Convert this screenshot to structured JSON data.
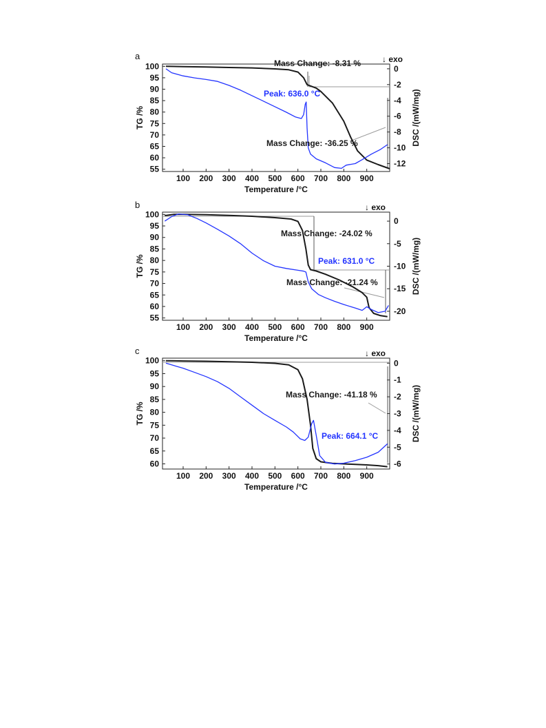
{
  "chart_data": [
    {
      "type": "line",
      "panel_label": "a",
      "xlabel": "Temperature /°C",
      "ylabel": "TG /%",
      "y2label": "DSC /(mW/mg)",
      "xlim": [
        10,
        1000
      ],
      "ylim": [
        54,
        101
      ],
      "y2lim": [
        -13,
        0.6
      ],
      "xticks": [
        100,
        200,
        300,
        400,
        500,
        600,
        700,
        800,
        900
      ],
      "yticks": [
        55,
        60,
        65,
        70,
        75,
        80,
        85,
        90,
        95,
        100
      ],
      "y2ticks": [
        0,
        -2,
        -4,
        -6,
        -8,
        -10,
        -12
      ],
      "exo_label": "↓ exo",
      "colors": {
        "TG": "#1a1a1a",
        "DSC": "#2233ff",
        "guide": "#999999"
      },
      "series": [
        {
          "name": "TG",
          "axis": "left",
          "color": "#1a1a1a",
          "points": [
            [
              25,
              100
            ],
            [
              100,
              99.9
            ],
            [
              200,
              99.7
            ],
            [
              300,
              99.5
            ],
            [
              400,
              99.3
            ],
            [
              500,
              98.9
            ],
            [
              560,
              98.5
            ],
            [
              600,
              97.5
            ],
            [
              625,
              95.0
            ],
            [
              640,
              92.0
            ],
            [
              650,
              91.6
            ],
            [
              680,
              90.5
            ],
            [
              700,
              89.0
            ],
            [
              750,
              84.0
            ],
            [
              800,
              76.0
            ],
            [
              830,
              69.0
            ],
            [
              860,
              63.0
            ],
            [
              900,
              59.0
            ],
            [
              950,
              57.0
            ],
            [
              1000,
              55.2
            ]
          ]
        },
        {
          "name": "DSC",
          "axis": "right",
          "color": "#2233ff",
          "points": [
            [
              25,
              0
            ],
            [
              50,
              -0.5
            ],
            [
              100,
              -0.9
            ],
            [
              150,
              -1.15
            ],
            [
              200,
              -1.35
            ],
            [
              250,
              -1.6
            ],
            [
              300,
              -2.1
            ],
            [
              350,
              -2.7
            ],
            [
              400,
              -3.4
            ],
            [
              450,
              -4.1
            ],
            [
              500,
              -4.8
            ],
            [
              550,
              -5.5
            ],
            [
              590,
              -6.1
            ],
            [
              615,
              -6.3
            ],
            [
              625,
              -5.8
            ],
            [
              632,
              -4.5
            ],
            [
              636,
              -4.2
            ],
            [
              640,
              -7.5
            ],
            [
              645,
              -10.0
            ],
            [
              655,
              -10.8
            ],
            [
              680,
              -11.4
            ],
            [
              720,
              -11.9
            ],
            [
              760,
              -12.5
            ],
            [
              790,
              -12.6
            ],
            [
              810,
              -12.2
            ],
            [
              850,
              -12.0
            ],
            [
              880,
              -11.5
            ],
            [
              920,
              -10.8
            ],
            [
              960,
              -10.2
            ],
            [
              990,
              -9.6
            ]
          ]
        }
      ],
      "annotations": [
        {
          "text": "Mass Change: -8.31 %",
          "color": "#1a1a1a"
        },
        {
          "text": "Peak: 636.0 °C",
          "color": "#2233ff"
        },
        {
          "text": "Mass Change: -36.25 %",
          "color": "#1a1a1a"
        }
      ]
    },
    {
      "type": "line",
      "panel_label": "b",
      "xlabel": "Temperature /°C",
      "ylabel": "TG /%",
      "y2label": "DSC /(mW/mg)",
      "xlim": [
        10,
        1000
      ],
      "ylim": [
        54,
        101
      ],
      "y2lim": [
        -22,
        2
      ],
      "xticks": [
        100,
        200,
        300,
        400,
        500,
        600,
        700,
        800,
        900
      ],
      "yticks": [
        55,
        60,
        65,
        70,
        75,
        80,
        85,
        90,
        95,
        100
      ],
      "y2ticks": [
        0,
        -5,
        -10,
        -15,
        -20
      ],
      "exo_label": "↓ exo",
      "colors": {
        "TG": "#1a1a1a",
        "DSC": "#2233ff",
        "guide": "#999999"
      },
      "series": [
        {
          "name": "TG",
          "axis": "left",
          "color": "#1a1a1a",
          "points": [
            [
              20,
              99.5
            ],
            [
              60,
              100
            ],
            [
              100,
              100
            ],
            [
              200,
              99.9
            ],
            [
              300,
              99.6
            ],
            [
              400,
              99.2
            ],
            [
              500,
              98.6
            ],
            [
              570,
              98.0
            ],
            [
              600,
              97.0
            ],
            [
              620,
              93.0
            ],
            [
              635,
              85.0
            ],
            [
              645,
              78.0
            ],
            [
              655,
              76.0
            ],
            [
              680,
              75.4
            ],
            [
              720,
              74.0
            ],
            [
              780,
              71.5
            ],
            [
              840,
              68.5
            ],
            [
              880,
              66.0
            ],
            [
              900,
              64.0
            ],
            [
              910,
              59.5
            ],
            [
              930,
              57.0
            ],
            [
              960,
              56.0
            ],
            [
              990,
              55.6
            ]
          ]
        },
        {
          "name": "DSC",
          "axis": "right",
          "color": "#2233ff",
          "points": [
            [
              20,
              0
            ],
            [
              50,
              1.0
            ],
            [
              80,
              1.6
            ],
            [
              120,
              1.4
            ],
            [
              160,
              0.6
            ],
            [
              200,
              -0.4
            ],
            [
              250,
              -1.8
            ],
            [
              300,
              -3.3
            ],
            [
              350,
              -5.0
            ],
            [
              400,
              -7.1
            ],
            [
              450,
              -8.8
            ],
            [
              500,
              -10.0
            ],
            [
              550,
              -10.5
            ],
            [
              600,
              -10.9
            ],
            [
              625,
              -11.1
            ],
            [
              635,
              -11.3
            ],
            [
              645,
              -13.5
            ],
            [
              660,
              -15.0
            ],
            [
              690,
              -16.3
            ],
            [
              720,
              -17.0
            ],
            [
              760,
              -17.8
            ],
            [
              800,
              -18.5
            ],
            [
              850,
              -19.3
            ],
            [
              880,
              -19.8
            ],
            [
              900,
              -19.0
            ],
            [
              920,
              -19.6
            ],
            [
              950,
              -20.3
            ],
            [
              980,
              -20.0
            ],
            [
              995,
              -18.7
            ]
          ]
        }
      ],
      "annotations": [
        {
          "text": "Mass Change: -24.02 %",
          "color": "#1a1a1a"
        },
        {
          "text": "Peak: 631.0 °C",
          "color": "#2233ff"
        },
        {
          "text": "Mass Change: -21.24 %",
          "color": "#1a1a1a"
        }
      ]
    },
    {
      "type": "line",
      "panel_label": "c",
      "xlabel": "Temperature /°C",
      "ylabel": "TG /%",
      "y2label": "DSC /(mW/mg)",
      "xlim": [
        10,
        1000
      ],
      "ylim": [
        58,
        101
      ],
      "y2lim": [
        -6.3,
        0.3
      ],
      "xticks": [
        100,
        200,
        300,
        400,
        500,
        600,
        700,
        800,
        900
      ],
      "yticks": [
        60,
        65,
        70,
        75,
        80,
        85,
        90,
        95,
        100
      ],
      "y2ticks": [
        0,
        -1,
        -2,
        -3,
        -4,
        -5,
        -6
      ],
      "exo_label": "↓ exo",
      "colors": {
        "TG": "#1a1a1a",
        "DSC": "#2233ff",
        "guide": "#999999"
      },
      "series": [
        {
          "name": "TG",
          "axis": "left",
          "color": "#1a1a1a",
          "points": [
            [
              25,
              100
            ],
            [
              100,
              99.9
            ],
            [
              200,
              99.8
            ],
            [
              300,
              99.6
            ],
            [
              400,
              99.4
            ],
            [
              500,
              99.0
            ],
            [
              560,
              98.4
            ],
            [
              600,
              96.5
            ],
            [
              620,
              93.0
            ],
            [
              640,
              85.0
            ],
            [
              655,
              75.0
            ],
            [
              665,
              66.0
            ],
            [
              680,
              62.0
            ],
            [
              700,
              60.8
            ],
            [
              750,
              60.2
            ],
            [
              800,
              60.0
            ],
            [
              850,
              59.8
            ],
            [
              900,
              59.6
            ],
            [
              950,
              59.3
            ],
            [
              990,
              58.9
            ]
          ]
        },
        {
          "name": "DSC",
          "axis": "right",
          "color": "#2233ff",
          "points": [
            [
              25,
              0
            ],
            [
              50,
              -0.1
            ],
            [
              100,
              -0.3
            ],
            [
              150,
              -0.55
            ],
            [
              200,
              -0.8
            ],
            [
              250,
              -1.1
            ],
            [
              300,
              -1.5
            ],
            [
              350,
              -2.0
            ],
            [
              400,
              -2.5
            ],
            [
              450,
              -3.0
            ],
            [
              500,
              -3.4
            ],
            [
              550,
              -3.8
            ],
            [
              580,
              -4.1
            ],
            [
              610,
              -4.5
            ],
            [
              630,
              -4.6
            ],
            [
              645,
              -4.4
            ],
            [
              660,
              -3.6
            ],
            [
              668,
              -3.4
            ],
            [
              680,
              -4.3
            ],
            [
              695,
              -5.5
            ],
            [
              720,
              -5.9
            ],
            [
              760,
              -6.0
            ],
            [
              800,
              -5.95
            ],
            [
              850,
              -5.8
            ],
            [
              900,
              -5.6
            ],
            [
              950,
              -5.3
            ],
            [
              990,
              -4.8
            ]
          ]
        }
      ],
      "annotations": [
        {
          "text": "Mass Change: -41.18 %",
          "color": "#1a1a1a"
        },
        {
          "text": "Peak: 664.1 °C",
          "color": "#2233ff"
        }
      ]
    }
  ]
}
